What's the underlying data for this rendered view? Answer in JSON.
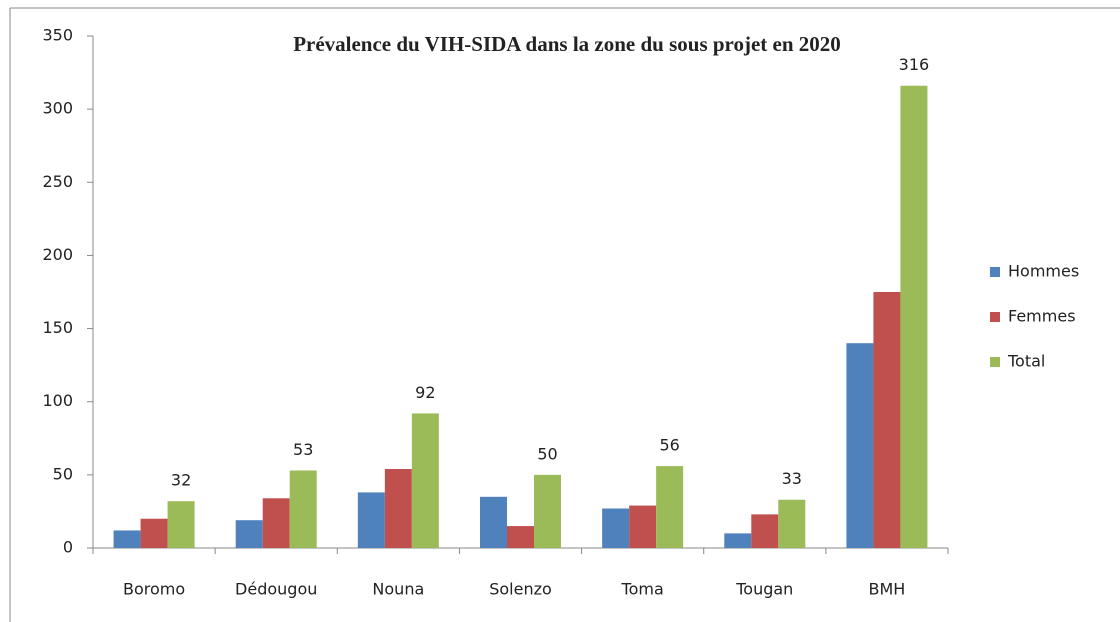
{
  "chart_data": {
    "type": "bar",
    "title": "Prévalence du VIH-SIDA dans la zone du sous projet en 2020",
    "categories": [
      "Boromo",
      "Dédougou",
      "Nouna",
      "Solenzo",
      "Toma",
      "Tougan",
      "BMH"
    ],
    "series": [
      {
        "name": "Hommes",
        "color": "#4f81bd",
        "values": [
          12,
          19,
          38,
          35,
          27,
          10,
          140
        ]
      },
      {
        "name": "Femmes",
        "color": "#c0504d",
        "values": [
          20,
          34,
          54,
          15,
          29,
          23,
          175
        ]
      },
      {
        "name": "Total",
        "color": "#9bbb59",
        "values": [
          32,
          53,
          92,
          50,
          56,
          33,
          316
        ]
      }
    ],
    "ylim": [
      0,
      350
    ],
    "yticks": [
      0,
      50,
      100,
      150,
      200,
      250,
      300,
      350
    ],
    "grid": false,
    "legend": "right"
  }
}
